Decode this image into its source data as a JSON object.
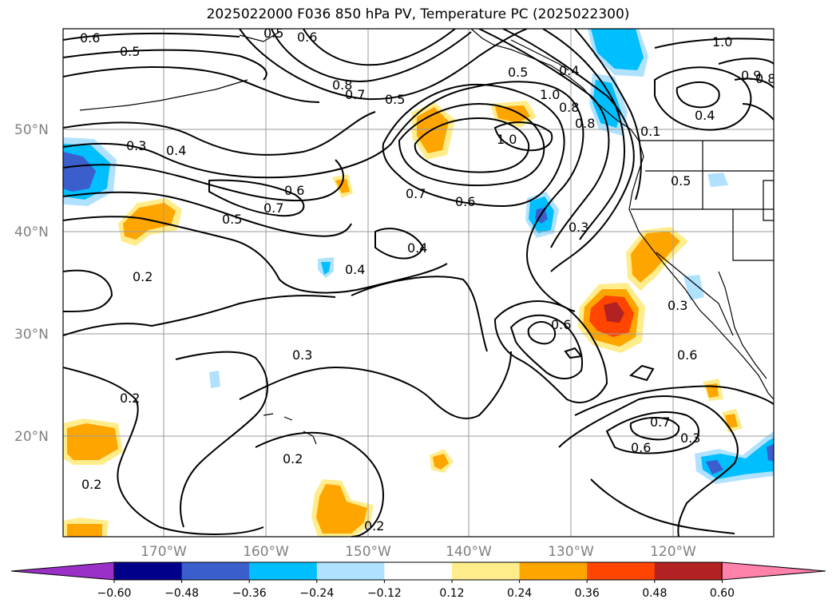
{
  "title": "2025022000 F036 850 hPa PV, Temperature PC (2025022300)",
  "map": {
    "lat_ticks": [
      "50°N",
      "40°N",
      "30°N",
      "20°N"
    ],
    "lon_ticks": [
      "170°W",
      "160°W",
      "150°W",
      "140°W",
      "130°W",
      "120°W"
    ],
    "contour_labels": [
      {
        "id": "a",
        "text": "0.6"
      },
      {
        "id": "b",
        "text": "0.5"
      },
      {
        "id": "c",
        "text": "0.5"
      },
      {
        "id": "d",
        "text": "0.6"
      },
      {
        "id": "e",
        "text": "0.8"
      },
      {
        "id": "f",
        "text": "0.7"
      },
      {
        "id": "g",
        "text": "0.5"
      },
      {
        "id": "h",
        "text": "0.5"
      },
      {
        "id": "i",
        "text": "0.4"
      },
      {
        "id": "j",
        "text": "1.0"
      },
      {
        "id": "k",
        "text": "0.8"
      },
      {
        "id": "l",
        "text": "0.8"
      },
      {
        "id": "m",
        "text": "0.3"
      },
      {
        "id": "n",
        "text": "0.4"
      },
      {
        "id": "o",
        "text": "0.6"
      },
      {
        "id": "p",
        "text": "0.7"
      },
      {
        "id": "q",
        "text": "0.5"
      },
      {
        "id": "r",
        "text": "0.7"
      },
      {
        "id": "s",
        "text": "0.6"
      },
      {
        "id": "t",
        "text": "1.0"
      },
      {
        "id": "u",
        "text": "0.1"
      },
      {
        "id": "v",
        "text": "0.5"
      },
      {
        "id": "w",
        "text": "0.3"
      },
      {
        "id": "x",
        "text": "0.4"
      },
      {
        "id": "y",
        "text": "0.2"
      },
      {
        "id": "z",
        "text": "0.4"
      },
      {
        "id": "aa",
        "text": "0.6"
      },
      {
        "id": "ab",
        "text": "0.3"
      },
      {
        "id": "ac",
        "text": "0.6"
      },
      {
        "id": "ad",
        "text": "0.3"
      },
      {
        "id": "ae",
        "text": "0.2"
      },
      {
        "id": "af",
        "text": "0.7"
      },
      {
        "id": "ag",
        "text": "0.6"
      },
      {
        "id": "ah",
        "text": "0.3"
      },
      {
        "id": "ai",
        "text": "0.2"
      },
      {
        "id": "aj",
        "text": "0.2"
      },
      {
        "id": "ak",
        "text": "0.2"
      },
      {
        "id": "al",
        "text": "1.0"
      },
      {
        "id": "am",
        "text": "0.9"
      },
      {
        "id": "an",
        "text": "0.8"
      },
      {
        "id": "ao",
        "text": "0.4"
      }
    ]
  },
  "colorbar": {
    "colors": [
      "#9a30c8",
      "#00008b",
      "#3a5fcd",
      "#00bfff",
      "#b0e2ff",
      "#ffffff",
      "#ffec8b",
      "#ffa500",
      "#ff4500",
      "#b22222",
      "#ff82ab"
    ],
    "tick_labels": [
      "−0.60",
      "−0.48",
      "−0.36",
      "−0.24",
      "−0.12",
      "0.12",
      "0.24",
      "0.36",
      "0.48",
      "0.60"
    ]
  }
}
